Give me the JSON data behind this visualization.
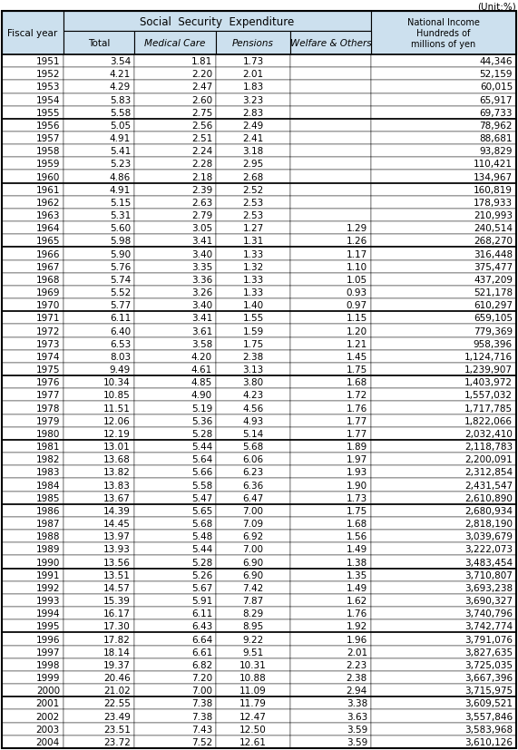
{
  "title_unit": "(Unit:%)",
  "rows": [
    [
      "1951",
      "3.54",
      "1.81",
      "1.73",
      "",
      "44,346"
    ],
    [
      "1952",
      "4.21",
      "2.20",
      "2.01",
      "",
      "52,159"
    ],
    [
      "1953",
      "4.29",
      "2.47",
      "1.83",
      "",
      "60,015"
    ],
    [
      "1954",
      "5.83",
      "2.60",
      "3.23",
      "",
      "65,917"
    ],
    [
      "1955",
      "5.58",
      "2.75",
      "2.83",
      "",
      "69,733"
    ],
    [
      "1956",
      "5.05",
      "2.56",
      "2.49",
      "",
      "78,962"
    ],
    [
      "1957",
      "4.91",
      "2.51",
      "2.41",
      "",
      "88,681"
    ],
    [
      "1958",
      "5.41",
      "2.24",
      "3.18",
      "",
      "93,829"
    ],
    [
      "1959",
      "5.23",
      "2.28",
      "2.95",
      "",
      "110,421"
    ],
    [
      "1960",
      "4.86",
      "2.18",
      "2.68",
      "",
      "134,967"
    ],
    [
      "1961",
      "4.91",
      "2.39",
      "2.52",
      "",
      "160,819"
    ],
    [
      "1962",
      "5.15",
      "2.63",
      "2.53",
      "",
      "178,933"
    ],
    [
      "1963",
      "5.31",
      "2.79",
      "2.53",
      "",
      "210,993"
    ],
    [
      "1964",
      "5.60",
      "3.05",
      "1.27",
      "1.29",
      "240,514"
    ],
    [
      "1965",
      "5.98",
      "3.41",
      "1.31",
      "1.26",
      "268,270"
    ],
    [
      "1966",
      "5.90",
      "3.40",
      "1.33",
      "1.17",
      "316,448"
    ],
    [
      "1967",
      "5.76",
      "3.35",
      "1.32",
      "1.10",
      "375,477"
    ],
    [
      "1968",
      "5.74",
      "3.36",
      "1.33",
      "1.05",
      "437,209"
    ],
    [
      "1969",
      "5.52",
      "3.26",
      "1.33",
      "0.93",
      "521,178"
    ],
    [
      "1970",
      "5.77",
      "3.40",
      "1.40",
      "0.97",
      "610,297"
    ],
    [
      "1971",
      "6.11",
      "3.41",
      "1.55",
      "1.15",
      "659,105"
    ],
    [
      "1972",
      "6.40",
      "3.61",
      "1.59",
      "1.20",
      "779,369"
    ],
    [
      "1973",
      "6.53",
      "3.58",
      "1.75",
      "1.21",
      "958,396"
    ],
    [
      "1974",
      "8.03",
      "4.20",
      "2.38",
      "1.45",
      "1,124,716"
    ],
    [
      "1975",
      "9.49",
      "4.61",
      "3.13",
      "1.75",
      "1,239,907"
    ],
    [
      "1976",
      "10.34",
      "4.85",
      "3.80",
      "1.68",
      "1,403,972"
    ],
    [
      "1977",
      "10.85",
      "4.90",
      "4.23",
      "1.72",
      "1,557,032"
    ],
    [
      "1978",
      "11.51",
      "5.19",
      "4.56",
      "1.76",
      "1,717,785"
    ],
    [
      "1979",
      "12.06",
      "5.36",
      "4.93",
      "1.77",
      "1,822,066"
    ],
    [
      "1980",
      "12.19",
      "5.28",
      "5.14",
      "1.77",
      "2,032,410"
    ],
    [
      "1981",
      "13.01",
      "5.44",
      "5.68",
      "1.89",
      "2,118,783"
    ],
    [
      "1982",
      "13.68",
      "5.64",
      "6.06",
      "1.97",
      "2,200,091"
    ],
    [
      "1983",
      "13.82",
      "5.66",
      "6.23",
      "1.93",
      "2,312,854"
    ],
    [
      "1984",
      "13.83",
      "5.58",
      "6.36",
      "1.90",
      "2,431,547"
    ],
    [
      "1985",
      "13.67",
      "5.47",
      "6.47",
      "1.73",
      "2,610,890"
    ],
    [
      "1986",
      "14.39",
      "5.65",
      "7.00",
      "1.75",
      "2,680,934"
    ],
    [
      "1987",
      "14.45",
      "5.68",
      "7.09",
      "1.68",
      "2,818,190"
    ],
    [
      "1988",
      "13.97",
      "5.48",
      "6.92",
      "1.56",
      "3,039,679"
    ],
    [
      "1989",
      "13.93",
      "5.44",
      "7.00",
      "1.49",
      "3,222,073"
    ],
    [
      "1990",
      "13.56",
      "5.28",
      "6.90",
      "1.38",
      "3,483,454"
    ],
    [
      "1991",
      "13.51",
      "5.26",
      "6.90",
      "1.35",
      "3,710,807"
    ],
    [
      "1992",
      "14.57",
      "5.67",
      "7.42",
      "1.49",
      "3,693,238"
    ],
    [
      "1993",
      "15.39",
      "5.91",
      "7.87",
      "1.62",
      "3,690,327"
    ],
    [
      "1994",
      "16.17",
      "6.11",
      "8.29",
      "1.76",
      "3,740,796"
    ],
    [
      "1995",
      "17.30",
      "6.43",
      "8.95",
      "1.92",
      "3,742,774"
    ],
    [
      "1996",
      "17.82",
      "6.64",
      "9.22",
      "1.96",
      "3,791,076"
    ],
    [
      "1997",
      "18.14",
      "6.61",
      "9.51",
      "2.01",
      "3,827,635"
    ],
    [
      "1998",
      "19.37",
      "6.82",
      "10.31",
      "2.23",
      "3,725,035"
    ],
    [
      "1999",
      "20.46",
      "7.20",
      "10.88",
      "2.38",
      "3,667,396"
    ],
    [
      "2000",
      "21.02",
      "7.00",
      "11.09",
      "2.94",
      "3,715,975"
    ],
    [
      "2001",
      "22.55",
      "7.38",
      "11.79",
      "3.38",
      "3,609,521"
    ],
    [
      "2002",
      "23.49",
      "7.38",
      "12.47",
      "3.63",
      "3,557,846"
    ],
    [
      "2003",
      "23.51",
      "7.43",
      "12.50",
      "3.59",
      "3,583,968"
    ],
    [
      "2004",
      "23.72",
      "7.52",
      "12.61",
      "3.59",
      "3,610,126"
    ]
  ],
  "group_breaks": [
    1951,
    1956,
    1961,
    1966,
    1971,
    1976,
    1981,
    1986,
    1991,
    1996,
    2001
  ],
  "col_header_bg": "#cce0ee",
  "data_bg": "#ffffff",
  "border_color": "#000000",
  "text_color": "#000000"
}
